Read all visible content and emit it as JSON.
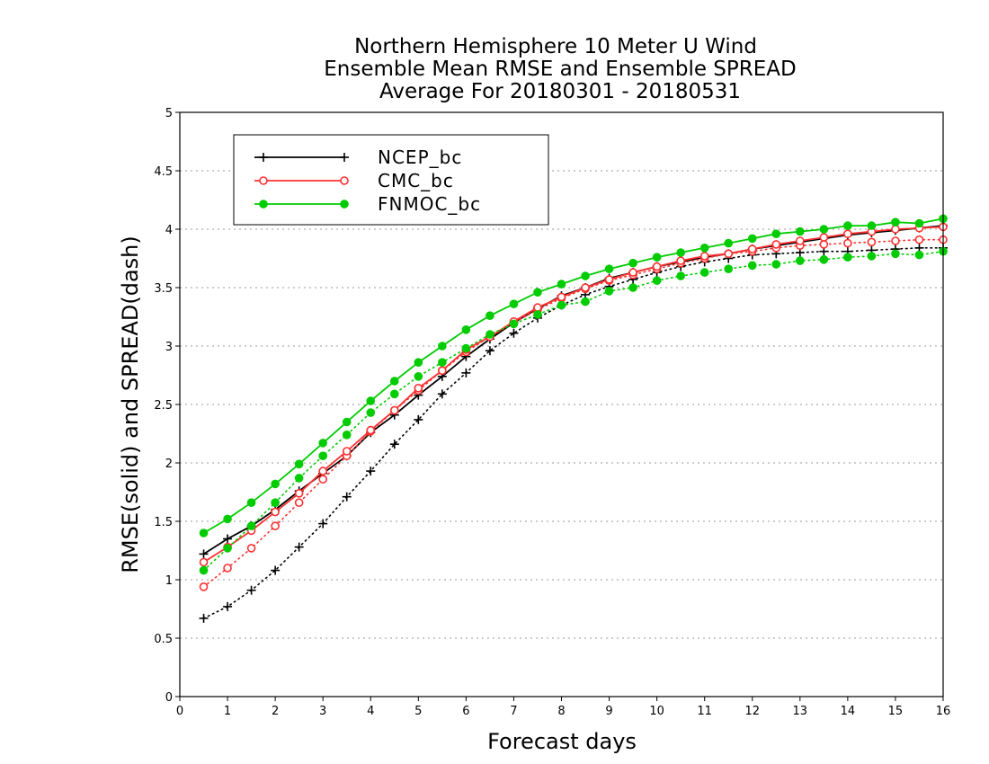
{
  "chart_data": {
    "type": "line",
    "title": [
      "Northern Hemisphere 10 Meter U Wind",
      "Ensemble Mean RMSE and Ensemble SPREAD",
      "Average For 20180301 - 20180531"
    ],
    "xlabel": "Forecast days",
    "ylabel": "RMSE(solid) and SPREAD(dash)",
    "xlim": [
      0,
      16
    ],
    "ylim": [
      0,
      5
    ],
    "xticks": [
      "0",
      "1",
      "2",
      "3",
      "4",
      "5",
      "6",
      "7",
      "8",
      "9",
      "10",
      "11",
      "12",
      "13",
      "14",
      "15",
      "16"
    ],
    "yticks": [
      "0",
      "0.5",
      "1",
      "1.5",
      "2",
      "2.5",
      "3",
      "3.5",
      "4",
      "4.5",
      "5"
    ],
    "grid": true,
    "legend_position": "top-left",
    "x": [
      0.5,
      1,
      1.5,
      2,
      2.5,
      3,
      3.5,
      4,
      4.5,
      5,
      5.5,
      6,
      6.5,
      7,
      7.5,
      8,
      8.5,
      9,
      9.5,
      10,
      10.5,
      11,
      11.5,
      12,
      12.5,
      13,
      13.5,
      14,
      14.5,
      15,
      15.5,
      16
    ],
    "series": [
      {
        "name": "NCEP_bc",
        "color": "#000000",
        "marker": "plus",
        "rmse": [
          1.22,
          1.35,
          1.46,
          1.6,
          1.76,
          1.91,
          2.06,
          2.26,
          2.41,
          2.58,
          2.74,
          2.91,
          3.06,
          3.2,
          3.32,
          3.43,
          3.5,
          3.58,
          3.63,
          3.68,
          3.72,
          3.76,
          3.79,
          3.83,
          3.86,
          3.89,
          3.92,
          3.95,
          3.97,
          3.99,
          4.01,
          4.03
        ],
        "spread": [
          0.67,
          0.77,
          0.91,
          1.08,
          1.28,
          1.48,
          1.71,
          1.93,
          2.16,
          2.37,
          2.59,
          2.77,
          2.96,
          3.11,
          3.24,
          3.35,
          3.44,
          3.51,
          3.57,
          3.63,
          3.68,
          3.72,
          3.75,
          3.78,
          3.79,
          3.8,
          3.81,
          3.81,
          3.82,
          3.83,
          3.84,
          3.84
        ]
      },
      {
        "name": "CMC_bc",
        "color": "#ff3030",
        "marker": "open-circle",
        "rmse": [
          1.15,
          1.28,
          1.42,
          1.58,
          1.74,
          1.93,
          2.1,
          2.28,
          2.45,
          2.64,
          2.79,
          2.97,
          3.08,
          3.21,
          3.33,
          3.42,
          3.5,
          3.57,
          3.63,
          3.68,
          3.73,
          3.77,
          3.79,
          3.83,
          3.87,
          3.9,
          3.93,
          3.96,
          3.98,
          4.0,
          4.01,
          4.02
        ],
        "spread": [
          0.94,
          1.1,
          1.27,
          1.46,
          1.66,
          1.86,
          2.06,
          2.27,
          2.45,
          2.62,
          2.79,
          2.95,
          3.08,
          3.2,
          3.31,
          3.41,
          3.49,
          3.56,
          3.61,
          3.66,
          3.71,
          3.75,
          3.79,
          3.81,
          3.84,
          3.86,
          3.87,
          3.88,
          3.89,
          3.9,
          3.91,
          3.91
        ]
      },
      {
        "name": "FNMOC_bc",
        "color": "#00cc00",
        "marker": "filled-circle",
        "rmse": [
          1.4,
          1.52,
          1.66,
          1.82,
          1.99,
          2.17,
          2.35,
          2.53,
          2.7,
          2.86,
          3.0,
          3.14,
          3.26,
          3.36,
          3.46,
          3.53,
          3.6,
          3.66,
          3.71,
          3.76,
          3.8,
          3.84,
          3.88,
          3.92,
          3.96,
          3.98,
          4.0,
          4.03,
          4.03,
          4.06,
          4.05,
          4.09
        ],
        "spread": [
          1.08,
          1.27,
          1.46,
          1.66,
          1.87,
          2.06,
          2.24,
          2.43,
          2.59,
          2.74,
          2.86,
          2.98,
          3.1,
          3.19,
          3.27,
          3.35,
          3.38,
          3.47,
          3.5,
          3.56,
          3.6,
          3.63,
          3.66,
          3.69,
          3.7,
          3.73,
          3.74,
          3.76,
          3.77,
          3.79,
          3.78,
          3.81
        ]
      }
    ]
  }
}
